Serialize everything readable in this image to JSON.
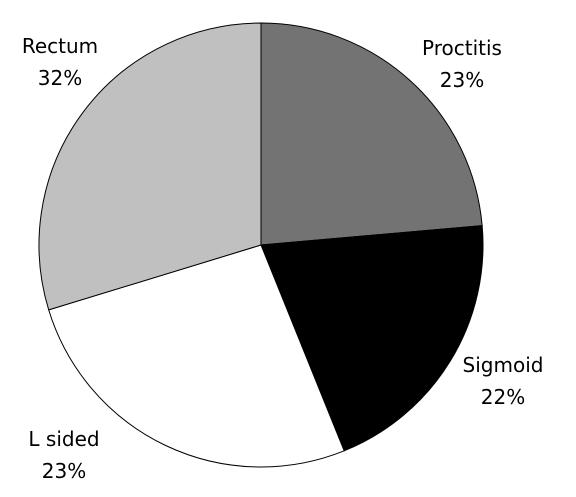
{
  "chart_data": {
    "type": "pie",
    "title": "",
    "start_angle_deg": 0,
    "direction": "clockwise",
    "slices": [
      {
        "label": "Proctitis",
        "value_label": "23%",
        "value": 23,
        "color": "#737373"
      },
      {
        "label": "Sigmoid",
        "value_label": "22%",
        "value": 22,
        "color": "#000000"
      },
      {
        "label": "L sided",
        "value_label": "23%",
        "value": 23,
        "color": "#ffffff"
      },
      {
        "label": "Rectum",
        "value_label": "32%",
        "value": 32,
        "color": "#c0c0c0"
      }
    ],
    "legend": "none",
    "edge_color": "#000000"
  }
}
